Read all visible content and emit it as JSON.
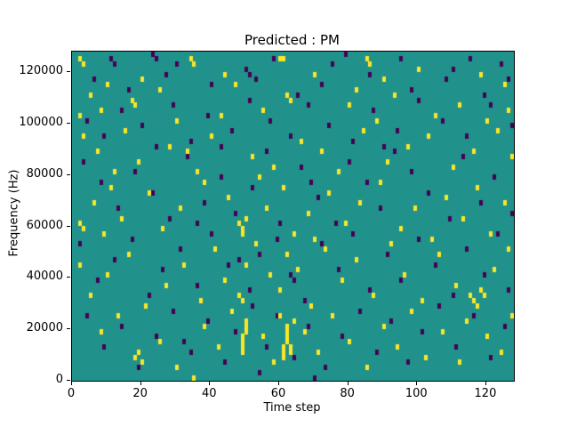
{
  "figure": {
    "title": "Predicted : PM",
    "xlabel": "Time step",
    "ylabel": "Frequency (Hz)"
  },
  "chart_data": {
    "type": "heatmap",
    "title": "Predicted : PM",
    "xlabel": "Time step",
    "ylabel": "Frequency (Hz)",
    "x_range": [
      0,
      128
    ],
    "y_range": [
      0,
      128000
    ],
    "x_ticks": [
      "0",
      "20",
      "40",
      "60",
      "80",
      "100",
      "120"
    ],
    "x_tick_values": [
      0,
      20,
      40,
      60,
      80,
      100,
      120
    ],
    "y_ticks": [
      "0",
      "20000",
      "40000",
      "60000",
      "80000",
      "100000",
      "120000"
    ],
    "y_tick_values": [
      0,
      20000,
      40000,
      60000,
      80000,
      100000,
      120000
    ],
    "grid_cols": 128,
    "grid_rows": 64,
    "row_height_hz": 2000,
    "grid": "off",
    "legend": "none",
    "colors": {
      "background": "#21918c",
      "high": "#fde725",
      "low": "#440154",
      "spine": "#000000"
    },
    "cells_high": [
      [
        2,
        62
      ],
      [
        3,
        61
      ],
      [
        34,
        62
      ],
      [
        35,
        61
      ],
      [
        60,
        62
      ],
      [
        61,
        62
      ],
      [
        85,
        62
      ],
      [
        86,
        61
      ],
      [
        100,
        60
      ],
      [
        44,
        59
      ],
      [
        70,
        59
      ],
      [
        90,
        58
      ],
      [
        118,
        59
      ],
      [
        125,
        57
      ],
      [
        10,
        57
      ],
      [
        20,
        58
      ],
      [
        5,
        55
      ],
      [
        8,
        52
      ],
      [
        17,
        54
      ],
      [
        18,
        53
      ],
      [
        30,
        50
      ],
      [
        43,
        51
      ],
      [
        55,
        52
      ],
      [
        62,
        55
      ],
      [
        63,
        54
      ],
      [
        80,
        53
      ],
      [
        82,
        56
      ],
      [
        88,
        50
      ],
      [
        93,
        55
      ],
      [
        105,
        51
      ],
      [
        112,
        53
      ],
      [
        120,
        50
      ],
      [
        126,
        52
      ],
      [
        2,
        51
      ],
      [
        25,
        56
      ],
      [
        47,
        57
      ],
      [
        3,
        47
      ],
      [
        7,
        44
      ],
      [
        15,
        48
      ],
      [
        19,
        42
      ],
      [
        28,
        45
      ],
      [
        36,
        40
      ],
      [
        40,
        47
      ],
      [
        52,
        43
      ],
      [
        58,
        41
      ],
      [
        66,
        46
      ],
      [
        72,
        44
      ],
      [
        77,
        40
      ],
      [
        84,
        48
      ],
      [
        91,
        42
      ],
      [
        97,
        45
      ],
      [
        103,
        47
      ],
      [
        110,
        41
      ],
      [
        116,
        44
      ],
      [
        123,
        48
      ],
      [
        127,
        43
      ],
      [
        12,
        40
      ],
      [
        33,
        44
      ],
      [
        2,
        30
      ],
      [
        3,
        29
      ],
      [
        6,
        34
      ],
      [
        9,
        28
      ],
      [
        11,
        37
      ],
      [
        14,
        31
      ],
      [
        22,
        36
      ],
      [
        26,
        29
      ],
      [
        31,
        33
      ],
      [
        38,
        38
      ],
      [
        45,
        35
      ],
      [
        48,
        30
      ],
      [
        49,
        29
      ],
      [
        49,
        28
      ],
      [
        50,
        31
      ],
      [
        56,
        33
      ],
      [
        61,
        37
      ],
      [
        64,
        28
      ],
      [
        68,
        32
      ],
      [
        74,
        36
      ],
      [
        79,
        30
      ],
      [
        83,
        34
      ],
      [
        89,
        38
      ],
      [
        95,
        29
      ],
      [
        99,
        33
      ],
      [
        104,
        27
      ],
      [
        108,
        35
      ],
      [
        113,
        31
      ],
      [
        117,
        37
      ],
      [
        121,
        28
      ],
      [
        125,
        34
      ],
      [
        54,
        39
      ],
      [
        70,
        27
      ],
      [
        2,
        22
      ],
      [
        5,
        16
      ],
      [
        10,
        20
      ],
      [
        16,
        24
      ],
      [
        21,
        14
      ],
      [
        27,
        18
      ],
      [
        32,
        22
      ],
      [
        37,
        15
      ],
      [
        41,
        25
      ],
      [
        44,
        19
      ],
      [
        48,
        16
      ],
      [
        49,
        15
      ],
      [
        50,
        22
      ],
      [
        53,
        26
      ],
      [
        57,
        20
      ],
      [
        60,
        17
      ],
      [
        62,
        24
      ],
      [
        65,
        21
      ],
      [
        69,
        14
      ],
      [
        73,
        25
      ],
      [
        78,
        19
      ],
      [
        82,
        23
      ],
      [
        87,
        16
      ],
      [
        92,
        26
      ],
      [
        96,
        20
      ],
      [
        101,
        15
      ],
      [
        106,
        24
      ],
      [
        111,
        18
      ],
      [
        115,
        16
      ],
      [
        116,
        15
      ],
      [
        117,
        14
      ],
      [
        118,
        17
      ],
      [
        119,
        16
      ],
      [
        122,
        21
      ],
      [
        126,
        25
      ],
      [
        49,
        5
      ],
      [
        49,
        6
      ],
      [
        49,
        7
      ],
      [
        49,
        8
      ],
      [
        50,
        9
      ],
      [
        50,
        10
      ],
      [
        50,
        11
      ],
      [
        61,
        4
      ],
      [
        61,
        5
      ],
      [
        61,
        6
      ],
      [
        62,
        7
      ],
      [
        62,
        8
      ],
      [
        62,
        9
      ],
      [
        62,
        10
      ],
      [
        63,
        5
      ],
      [
        63,
        6
      ],
      [
        64,
        11
      ],
      [
        60,
        12
      ],
      [
        18,
        4
      ],
      [
        19,
        5
      ],
      [
        20,
        3
      ],
      [
        8,
        9
      ],
      [
        13,
        12
      ],
      [
        25,
        7
      ],
      [
        30,
        2
      ],
      [
        35,
        0
      ],
      [
        38,
        10
      ],
      [
        42,
        6
      ],
      [
        46,
        13
      ],
      [
        55,
        8
      ],
      [
        58,
        3
      ],
      [
        67,
        9
      ],
      [
        71,
        5
      ],
      [
        75,
        12
      ],
      [
        80,
        7
      ],
      [
        85,
        2
      ],
      [
        90,
        10
      ],
      [
        94,
        6
      ],
      [
        98,
        13
      ],
      [
        102,
        4
      ],
      [
        107,
        9
      ],
      [
        112,
        3
      ],
      [
        114,
        11
      ],
      [
        120,
        8
      ],
      [
        124,
        5
      ],
      [
        127,
        12
      ]
    ],
    "cells_low": [
      [
        11,
        62
      ],
      [
        12,
        61
      ],
      [
        23,
        63
      ],
      [
        24,
        62
      ],
      [
        30,
        61
      ],
      [
        50,
        60
      ],
      [
        51,
        59
      ],
      [
        58,
        62
      ],
      [
        75,
        61
      ],
      [
        79,
        63
      ],
      [
        95,
        62
      ],
      [
        110,
        60
      ],
      [
        115,
        62
      ],
      [
        124,
        61
      ],
      [
        6,
        58
      ],
      [
        16,
        56
      ],
      [
        27,
        59
      ],
      [
        40,
        57
      ],
      [
        53,
        58
      ],
      [
        65,
        55
      ],
      [
        72,
        57
      ],
      [
        86,
        59
      ],
      [
        98,
        56
      ],
      [
        108,
        58
      ],
      [
        119,
        55
      ],
      [
        126,
        58
      ],
      [
        4,
        50
      ],
      [
        9,
        47
      ],
      [
        14,
        52
      ],
      [
        20,
        49
      ],
      [
        29,
        53
      ],
      [
        34,
        46
      ],
      [
        39,
        51
      ],
      [
        46,
        48
      ],
      [
        51,
        54
      ],
      [
        57,
        50
      ],
      [
        63,
        47
      ],
      [
        68,
        53
      ],
      [
        74,
        49
      ],
      [
        81,
        46
      ],
      [
        87,
        52
      ],
      [
        94,
        48
      ],
      [
        100,
        54
      ],
      [
        107,
        50
      ],
      [
        114,
        47
      ],
      [
        121,
        53
      ],
      [
        127,
        49
      ],
      [
        24,
        45
      ],
      [
        43,
        45
      ],
      [
        90,
        45
      ],
      [
        3,
        42
      ],
      [
        8,
        38
      ],
      [
        13,
        33
      ],
      [
        18,
        40
      ],
      [
        23,
        36
      ],
      [
        28,
        31
      ],
      [
        33,
        43
      ],
      [
        38,
        34
      ],
      [
        43,
        39
      ],
      [
        47,
        32
      ],
      [
        52,
        37
      ],
      [
        56,
        44
      ],
      [
        60,
        30
      ],
      [
        66,
        41
      ],
      [
        71,
        35
      ],
      [
        76,
        30
      ],
      [
        80,
        42
      ],
      [
        85,
        38
      ],
      [
        89,
        33
      ],
      [
        93,
        44
      ],
      [
        98,
        40
      ],
      [
        103,
        36
      ],
      [
        109,
        31
      ],
      [
        113,
        43
      ],
      [
        118,
        34
      ],
      [
        122,
        39
      ],
      [
        127,
        32
      ],
      [
        69,
        38
      ],
      [
        36,
        30
      ],
      [
        2,
        26
      ],
      [
        7,
        19
      ],
      [
        12,
        23
      ],
      [
        17,
        27
      ],
      [
        22,
        16
      ],
      [
        26,
        21
      ],
      [
        31,
        25
      ],
      [
        36,
        18
      ],
      [
        40,
        28
      ],
      [
        45,
        22
      ],
      [
        51,
        17
      ],
      [
        54,
        24
      ],
      [
        59,
        27
      ],
      [
        63,
        20
      ],
      [
        67,
        15
      ],
      [
        72,
        26
      ],
      [
        77,
        21
      ],
      [
        81,
        28
      ],
      [
        86,
        17
      ],
      [
        91,
        24
      ],
      [
        95,
        19
      ],
      [
        100,
        27
      ],
      [
        105,
        22
      ],
      [
        110,
        16
      ],
      [
        114,
        25
      ],
      [
        119,
        20
      ],
      [
        123,
        28
      ],
      [
        126,
        17
      ],
      [
        48,
        23
      ],
      [
        64,
        19
      ],
      [
        4,
        12
      ],
      [
        9,
        6
      ],
      [
        14,
        10
      ],
      [
        19,
        2
      ],
      [
        24,
        8
      ],
      [
        29,
        13
      ],
      [
        34,
        5
      ],
      [
        39,
        11
      ],
      [
        44,
        3
      ],
      [
        47,
        9
      ],
      [
        52,
        14
      ],
      [
        56,
        6
      ],
      [
        59,
        12
      ],
      [
        64,
        4
      ],
      [
        68,
        10
      ],
      [
        73,
        2
      ],
      [
        78,
        8
      ],
      [
        83,
        13
      ],
      [
        88,
        5
      ],
      [
        92,
        11
      ],
      [
        97,
        3
      ],
      [
        101,
        9
      ],
      [
        106,
        14
      ],
      [
        111,
        6
      ],
      [
        116,
        12
      ],
      [
        121,
        4
      ],
      [
        125,
        10
      ],
      [
        32,
        7
      ],
      [
        70,
        0
      ],
      [
        54,
        1
      ]
    ]
  }
}
